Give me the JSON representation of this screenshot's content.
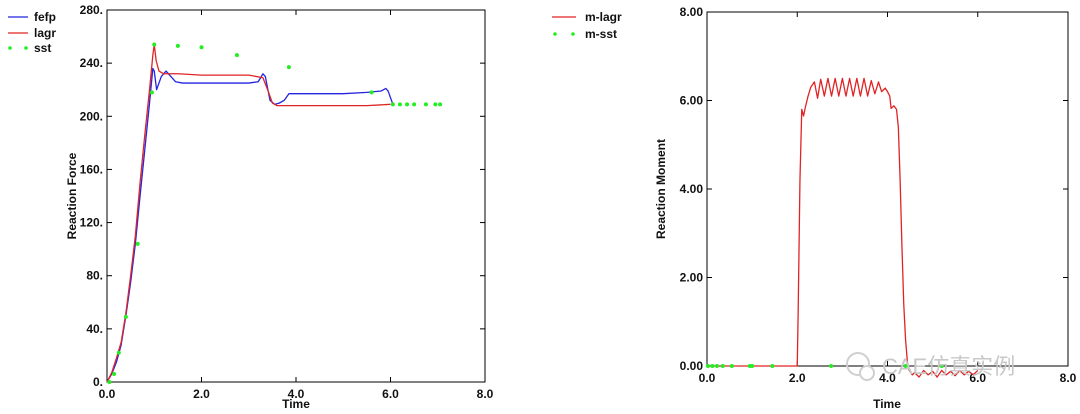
{
  "chart_data": [
    {
      "type": "line",
      "xlabel": "Time",
      "ylabel": "Reaction Force",
      "xlim": [
        0,
        8
      ],
      "ylim": [
        0,
        280
      ],
      "xticks": [
        "0.0",
        "2.0",
        "4.0",
        "6.0",
        "8.0"
      ],
      "yticks": [
        "0.",
        "40.",
        "80.",
        "120.",
        "160.",
        "200.",
        "240.",
        "280."
      ],
      "legend_position": "top-left",
      "series": [
        {
          "name": "fefp",
          "color": "#2424e0",
          "style": "line",
          "points": [
            [
              0,
              0
            ],
            [
              0.1,
              6
            ],
            [
              0.2,
              15
            ],
            [
              0.3,
              28
            ],
            [
              0.4,
              50
            ],
            [
              0.5,
              75
            ],
            [
              0.6,
              104
            ],
            [
              0.7,
              140
            ],
            [
              0.8,
              175
            ],
            [
              0.9,
              210
            ],
            [
              0.97,
              236
            ],
            [
              1.0,
              234
            ],
            [
              1.05,
              220
            ],
            [
              1.15,
              230
            ],
            [
              1.25,
              234
            ],
            [
              1.35,
              230
            ],
            [
              1.45,
              226
            ],
            [
              1.6,
              225
            ],
            [
              2.0,
              225
            ],
            [
              2.5,
              225
            ],
            [
              3.0,
              225
            ],
            [
              3.2,
              226
            ],
            [
              3.3,
              232
            ],
            [
              3.35,
              230
            ],
            [
              3.45,
              212
            ],
            [
              3.55,
              209
            ],
            [
              3.65,
              210
            ],
            [
              3.75,
              212
            ],
            [
              3.85,
              217
            ],
            [
              4.0,
              217
            ],
            [
              4.5,
              217
            ],
            [
              5.0,
              217
            ],
            [
              5.5,
              218
            ],
            [
              5.8,
              219
            ],
            [
              5.9,
              221
            ],
            [
              5.95,
              219
            ],
            [
              6.0,
              214
            ],
            [
              6.05,
              209
            ]
          ]
        },
        {
          "name": "lagr",
          "color": "#e02424",
          "style": "line",
          "points": [
            [
              0,
              0
            ],
            [
              0.1,
              7
            ],
            [
              0.2,
              18
            ],
            [
              0.3,
              30
            ],
            [
              0.4,
              52
            ],
            [
              0.5,
              80
            ],
            [
              0.6,
              110
            ],
            [
              0.7,
              150
            ],
            [
              0.8,
              186
            ],
            [
              0.9,
              220
            ],
            [
              0.97,
              246
            ],
            [
              1.0,
              254
            ],
            [
              1.04,
              242
            ],
            [
              1.1,
              234
            ],
            [
              1.2,
              232
            ],
            [
              1.5,
              232
            ],
            [
              2.0,
              231
            ],
            [
              2.5,
              231
            ],
            [
              3.0,
              231
            ],
            [
              3.3,
              229
            ],
            [
              3.4,
              220
            ],
            [
              3.5,
              210
            ],
            [
              3.6,
              208
            ],
            [
              4.0,
              208
            ],
            [
              4.5,
              208
            ],
            [
              5.0,
              208
            ],
            [
              5.5,
              208
            ],
            [
              6.0,
              209
            ]
          ]
        },
        {
          "name": "sst",
          "color": "#22ee22",
          "style": "dots",
          "points": [
            [
              0.05,
              0
            ],
            [
              0.15,
              6
            ],
            [
              0.25,
              22
            ],
            [
              0.4,
              49
            ],
            [
              0.65,
              104
            ],
            [
              0.95,
              218
            ],
            [
              1.0,
              254
            ],
            [
              1.5,
              253
            ],
            [
              2.0,
              252
            ],
            [
              2.75,
              246
            ],
            [
              3.85,
              237
            ],
            [
              5.6,
              218
            ],
            [
              6.05,
              209
            ],
            [
              6.2,
              209
            ],
            [
              6.35,
              209
            ],
            [
              6.5,
              209
            ],
            [
              6.75,
              209
            ],
            [
              6.95,
              209
            ],
            [
              7.05,
              209
            ]
          ]
        }
      ]
    },
    {
      "type": "line",
      "xlabel": "Time",
      "ylabel": "Reaction Moment",
      "xlim": [
        0,
        8
      ],
      "ylim": [
        0,
        8
      ],
      "xticks": [
        "0.0",
        "2.0",
        "4.0",
        "6.0",
        "8.0"
      ],
      "yticks": [
        "0.00",
        "2.00",
        "4.00",
        "6.00",
        "8.00"
      ],
      "legend_position": "outside-top-left",
      "series": [
        {
          "name": "m-lagr",
          "color": "#e02424",
          "style": "line",
          "points": [
            [
              0,
              0
            ],
            [
              0.5,
              0
            ],
            [
              1.0,
              0
            ],
            [
              1.5,
              0
            ],
            [
              2.0,
              0
            ],
            [
              2.02,
              1.2
            ],
            [
              2.06,
              4.2
            ],
            [
              2.1,
              5.8
            ],
            [
              2.14,
              5.65
            ],
            [
              2.18,
              5.85
            ],
            [
              2.24,
              6.1
            ],
            [
              2.3,
              6.3
            ],
            [
              2.38,
              6.42
            ],
            [
              2.45,
              6.05
            ],
            [
              2.52,
              6.48
            ],
            [
              2.6,
              6.1
            ],
            [
              2.68,
              6.5
            ],
            [
              2.76,
              6.1
            ],
            [
              2.84,
              6.5
            ],
            [
              2.92,
              6.1
            ],
            [
              3.0,
              6.5
            ],
            [
              3.08,
              6.1
            ],
            [
              3.16,
              6.5
            ],
            [
              3.24,
              6.1
            ],
            [
              3.32,
              6.5
            ],
            [
              3.4,
              6.1
            ],
            [
              3.48,
              6.5
            ],
            [
              3.56,
              6.1
            ],
            [
              3.64,
              6.45
            ],
            [
              3.72,
              6.15
            ],
            [
              3.8,
              6.42
            ],
            [
              3.87,
              6.2
            ],
            [
              3.95,
              6.28
            ],
            [
              4.0,
              6.2
            ],
            [
              4.05,
              6.1
            ],
            [
              4.08,
              5.82
            ],
            [
              4.14,
              5.88
            ],
            [
              4.2,
              5.8
            ],
            [
              4.24,
              5.4
            ],
            [
              4.28,
              4.2
            ],
            [
              4.32,
              2.7
            ],
            [
              4.36,
              1.4
            ],
            [
              4.4,
              0.6
            ],
            [
              4.44,
              0.1
            ],
            [
              4.48,
              -0.1
            ],
            [
              4.55,
              -0.2
            ],
            [
              4.6,
              -0.15
            ],
            [
              4.7,
              -0.25
            ],
            [
              4.8,
              -0.1
            ],
            [
              4.9,
              -0.2
            ],
            [
              5.0,
              -0.12
            ],
            [
              5.1,
              -0.25
            ],
            [
              5.2,
              -0.1
            ],
            [
              5.3,
              -0.2
            ],
            [
              5.4,
              -0.12
            ],
            [
              5.5,
              -0.22
            ],
            [
              5.6,
              -0.1
            ],
            [
              5.7,
              -0.2
            ],
            [
              5.8,
              -0.12
            ],
            [
              5.9,
              -0.2
            ],
            [
              6.0,
              -0.1
            ]
          ]
        },
        {
          "name": "m-sst",
          "color": "#22ee22",
          "style": "dots",
          "points": [
            [
              0.02,
              0
            ],
            [
              0.12,
              0
            ],
            [
              0.22,
              0
            ],
            [
              0.35,
              0
            ],
            [
              0.55,
              0
            ],
            [
              0.95,
              0
            ],
            [
              1.0,
              0
            ],
            [
              1.45,
              0
            ],
            [
              2.75,
              0
            ],
            [
              4.4,
              0
            ],
            [
              5.2,
              0
            ]
          ]
        }
      ]
    }
  ],
  "watermark": {
    "icon": "chat-bubble-icon",
    "text": "CAE仿真实例"
  }
}
